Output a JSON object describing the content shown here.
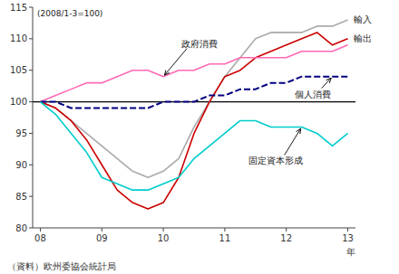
{
  "chart_data": {
    "type": "line",
    "subtitle": "(2008/1-3=100)",
    "x_label": "年",
    "source": "（資料）欧州委協会統計局",
    "categories": [
      "08",
      null,
      null,
      null,
      "09",
      null,
      null,
      null,
      "10",
      null,
      null,
      null,
      "11",
      null,
      null,
      null,
      "12",
      null,
      null,
      null,
      "13"
    ],
    "series": [
      {
        "name": "輸入",
        "color": "#aaaaaa",
        "line_style": "solid",
        "values": [
          100,
          99,
          97,
          95,
          93,
          91,
          89,
          88,
          89,
          91,
          96,
          100,
          104,
          107,
          110,
          111,
          111,
          111,
          112,
          112,
          113
        ]
      },
      {
        "name": "輸出",
        "color": "#cc0000",
        "line_style": "solid",
        "values": [
          100,
          99,
          97,
          94,
          90,
          86,
          84,
          83,
          84,
          88,
          95,
          100,
          104,
          105,
          107,
          108,
          109,
          110,
          111,
          109,
          110
        ]
      },
      {
        "name": "政府消費",
        "color": "#ff69b4",
        "line_style": "solid",
        "values": [
          100,
          101,
          102,
          103,
          103,
          104,
          105,
          105,
          104,
          105,
          105,
          106,
          106,
          107,
          107,
          107,
          107,
          108,
          108,
          108,
          109
        ]
      },
      {
        "name": "個人消費",
        "color": "#000080",
        "line_style": "dashed",
        "values": [
          100,
          100,
          99,
          99,
          99,
          99,
          99,
          99,
          100,
          100,
          100,
          101,
          101,
          102,
          102,
          103,
          103,
          104,
          104,
          104,
          104
        ]
      },
      {
        "name": "固定資本形成",
        "color": "#00cccc",
        "line_style": "solid",
        "values": [
          100,
          98,
          95,
          92,
          88,
          87,
          86,
          86,
          87,
          88,
          91,
          93,
          95,
          97,
          97,
          96,
          96,
          96,
          95,
          93,
          95
        ]
      }
    ],
    "hline_y": 100,
    "ylim": [
      80,
      115
    ],
    "yticks": [
      80,
      85,
      90,
      95,
      100,
      105,
      110,
      115
    ],
    "grid": false
  }
}
